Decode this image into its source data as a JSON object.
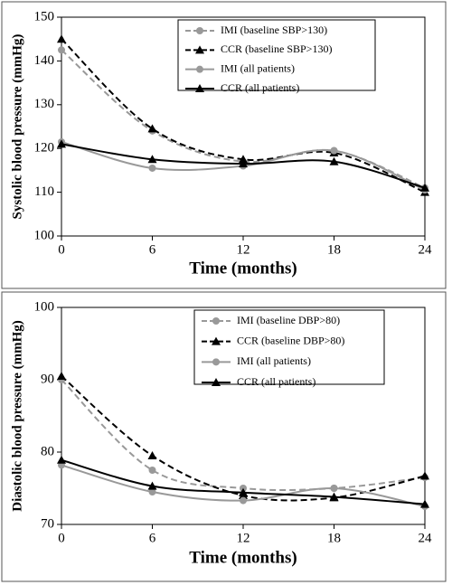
{
  "chart_data": [
    {
      "type": "line",
      "ylabel": "Systolic blood pressure (mmHg)",
      "xlabel": "Time (months)",
      "x": [
        0,
        6,
        12,
        18,
        24
      ],
      "xlim": [
        0,
        24
      ],
      "xticks": [
        0,
        6,
        12,
        18,
        24
      ],
      "ylim": [
        100,
        150
      ],
      "yticks": [
        100,
        110,
        120,
        130,
        140,
        150
      ],
      "series": [
        {
          "name": "IMI (baseline SBP>130)",
          "color": "#999999",
          "dashed": true,
          "marker": "circle",
          "values": [
            142.5,
            124,
            117,
            119.5,
            111
          ]
        },
        {
          "name": "CCR (baseline SBP>130)",
          "color": "#000000",
          "dashed": true,
          "marker": "triangle",
          "values": [
            145,
            124.5,
            117.5,
            119,
            110
          ]
        },
        {
          "name": "IMI (all patients)",
          "color": "#999999",
          "dashed": false,
          "marker": "circle",
          "values": [
            121.5,
            115.5,
            116,
            119.5,
            110.5
          ]
        },
        {
          "name": "CCR (all patients)",
          "color": "#000000",
          "dashed": false,
          "marker": "triangle",
          "values": [
            121,
            117.5,
            116.5,
            117,
            111
          ]
        }
      ]
    },
    {
      "type": "line",
      "ylabel": "Diastolic blood pressure (mmHg)",
      "xlabel": "Time (months)",
      "x": [
        0,
        6,
        12,
        18,
        24
      ],
      "xlim": [
        0,
        24
      ],
      "xticks": [
        0,
        6,
        12,
        18,
        24
      ],
      "ylim": [
        70,
        100
      ],
      "yticks": [
        70,
        80,
        90,
        100
      ],
      "series": [
        {
          "name": "IMI (baseline DBP>80)",
          "color": "#999999",
          "dashed": true,
          "marker": "circle",
          "values": [
            90,
            77.5,
            75,
            75,
            76.5
          ]
        },
        {
          "name": "CCR (baseline DBP>80)",
          "color": "#000000",
          "dashed": true,
          "marker": "triangle",
          "values": [
            90.5,
            79.5,
            74,
            73.7,
            76.7
          ]
        },
        {
          "name": "IMI (all patients)",
          "color": "#999999",
          "dashed": false,
          "marker": "circle",
          "values": [
            78.2,
            74.5,
            73.3,
            75,
            72.5
          ]
        },
        {
          "name": "CCR (all patients)",
          "color": "#000000",
          "dashed": false,
          "marker": "triangle",
          "values": [
            78.9,
            75.3,
            74.4,
            73.8,
            72.8
          ]
        }
      ]
    }
  ]
}
